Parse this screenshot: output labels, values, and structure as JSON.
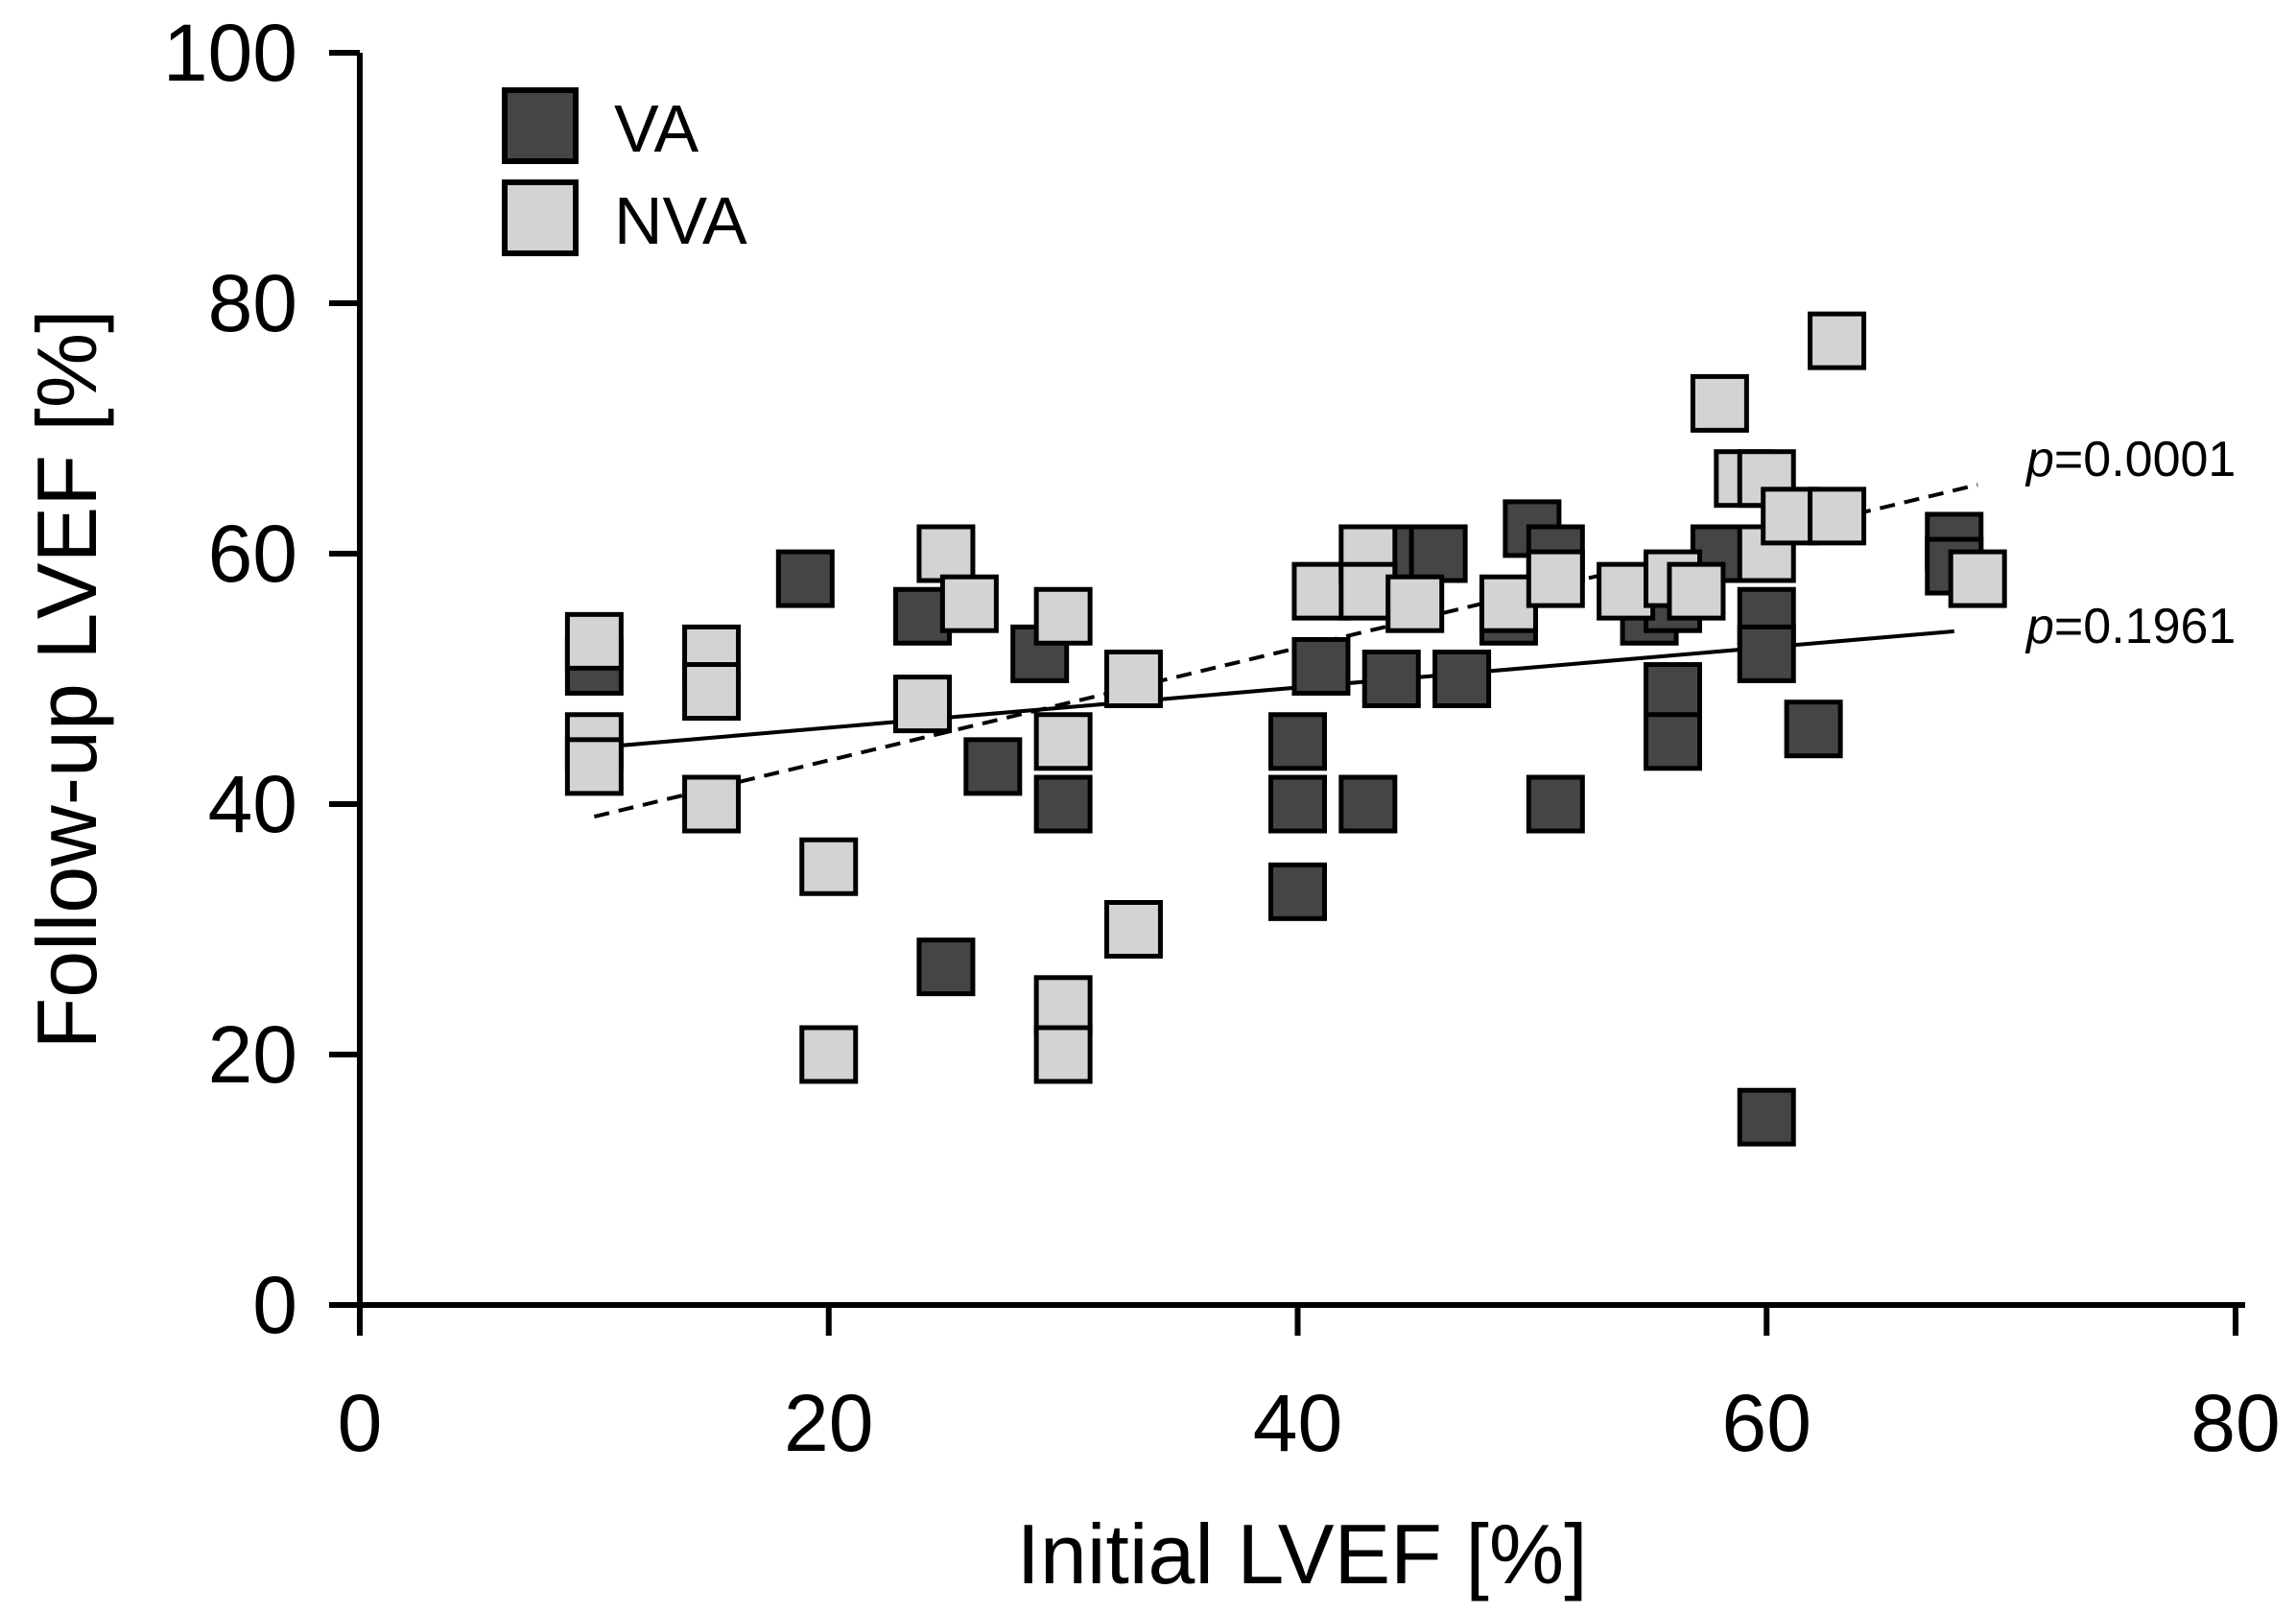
{
  "chart_data": {
    "type": "scatter",
    "xlabel": "Initial LVEF [%]",
    "ylabel": "Follow-up LVEF [%]",
    "xlim": [
      0,
      80
    ],
    "ylim": [
      0,
      100
    ],
    "xticks": [
      "0",
      "20",
      "40",
      "60",
      "80"
    ],
    "yticks": [
      "0",
      "20",
      "40",
      "60",
      "80",
      "100"
    ],
    "grid": false,
    "legend_position": "top-left",
    "series": [
      {
        "name": "VA",
        "color": "#454545",
        "points": [
          [
            10,
            51
          ],
          [
            19,
            58
          ],
          [
            24,
            55
          ],
          [
            25,
            27
          ],
          [
            27,
            43
          ],
          [
            29,
            52
          ],
          [
            30,
            40
          ],
          [
            40,
            45
          ],
          [
            40,
            40
          ],
          [
            40,
            33
          ],
          [
            41,
            51
          ],
          [
            43,
            40
          ],
          [
            44,
            50
          ],
          [
            45,
            60
          ],
          [
            46,
            60
          ],
          [
            47,
            50
          ],
          [
            49,
            55
          ],
          [
            50,
            62
          ],
          [
            51,
            60
          ],
          [
            51,
            40
          ],
          [
            55,
            55
          ],
          [
            56,
            49
          ],
          [
            56,
            45
          ],
          [
            56,
            56
          ],
          [
            58,
            60
          ],
          [
            60,
            55
          ],
          [
            60,
            52
          ],
          [
            60,
            15
          ],
          [
            62,
            46
          ],
          [
            68,
            61
          ],
          [
            68,
            59
          ]
        ],
        "fit": {
          "x": [
            10,
            68
          ],
          "y": [
            44.5,
            53.8
          ],
          "style": "solid",
          "p_label": "p",
          "p_value": "=0.1961"
        }
      },
      {
        "name": "NVA",
        "color": "#d3d3d3",
        "points": [
          [
            10,
            53
          ],
          [
            10,
            45
          ],
          [
            10,
            43
          ],
          [
            15,
            52
          ],
          [
            15,
            49
          ],
          [
            15,
            40
          ],
          [
            20,
            35
          ],
          [
            20,
            20
          ],
          [
            24,
            48
          ],
          [
            25,
            60
          ],
          [
            26,
            56
          ],
          [
            30,
            55
          ],
          [
            30,
            45
          ],
          [
            30,
            24
          ],
          [
            30,
            20
          ],
          [
            33,
            50
          ],
          [
            33,
            30
          ],
          [
            41,
            57
          ],
          [
            43,
            60
          ],
          [
            43,
            57
          ],
          [
            45,
            56
          ],
          [
            49,
            56
          ],
          [
            51,
            58
          ],
          [
            54,
            57
          ],
          [
            56,
            58
          ],
          [
            57,
            57
          ],
          [
            58,
            72
          ],
          [
            59,
            66
          ],
          [
            60,
            66
          ],
          [
            60,
            60
          ],
          [
            61,
            63
          ],
          [
            63,
            77
          ],
          [
            63,
            63
          ],
          [
            69,
            58
          ]
        ],
        "fit": {
          "x": [
            10,
            69
          ],
          "y": [
            39,
            65.5
          ],
          "style": "dashed",
          "p_label": "p",
          "p_value": "=0.0001"
        }
      }
    ]
  }
}
